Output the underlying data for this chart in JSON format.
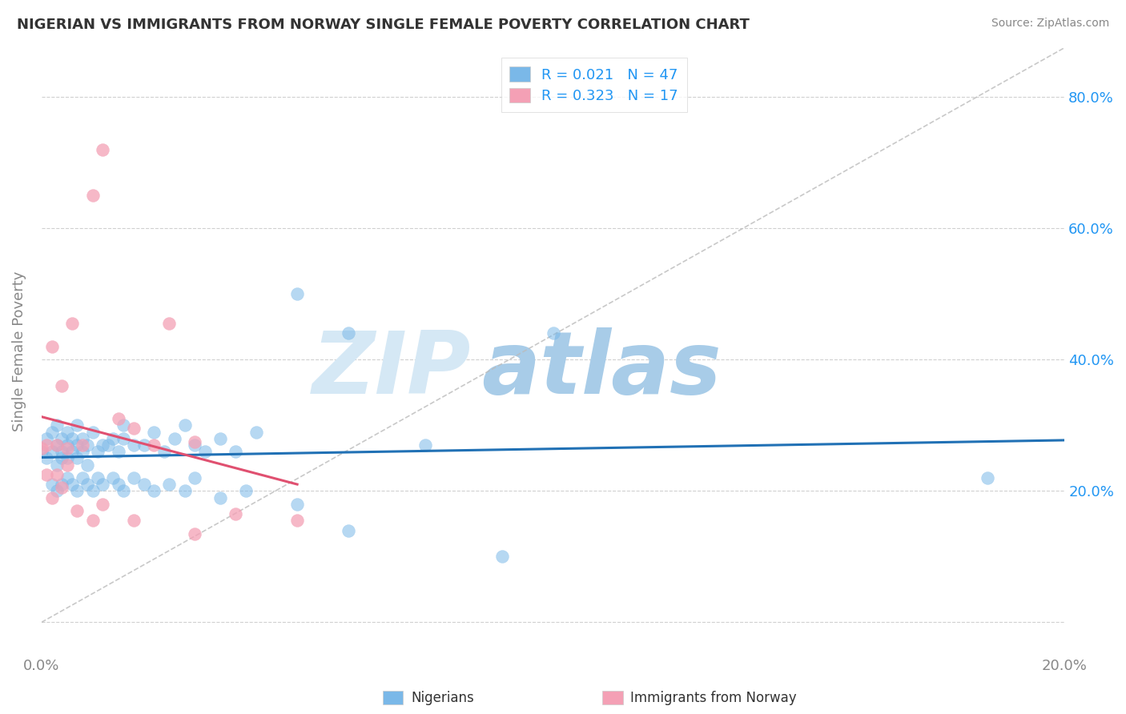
{
  "title": "NIGERIAN VS IMMIGRANTS FROM NORWAY SINGLE FEMALE POVERTY CORRELATION CHART",
  "source": "Source: ZipAtlas.com",
  "ylabel": "Single Female Poverty",
  "xlim": [
    0.0,
    0.2
  ],
  "ylim": [
    -0.05,
    0.875
  ],
  "xticks": [
    0.0,
    0.05,
    0.1,
    0.15,
    0.2
  ],
  "xticklabels": [
    "0.0%",
    "",
    "",
    "",
    "20.0%"
  ],
  "yticks_right": [
    0.0,
    0.2,
    0.4,
    0.6,
    0.8
  ],
  "yticklabels_right": [
    "",
    "20.0%",
    "40.0%",
    "60.0%",
    "80.0%"
  ],
  "blue_color": "#7ab8e8",
  "pink_color": "#f4a0b5",
  "blue_line_color": "#2171b5",
  "pink_line_color": "#e05070",
  "grid_color": "#d0d0d0",
  "watermark_zip_color": "#d5e8f5",
  "watermark_atlas_color": "#a8cce8",
  "legend_text_color": "#2196F3",
  "tick_color": "#888888",
  "ylabel_color": "#888888",
  "nigerians_x": [
    0.0,
    0.001,
    0.001,
    0.002,
    0.002,
    0.003,
    0.003,
    0.003,
    0.004,
    0.004,
    0.004,
    0.005,
    0.005,
    0.005,
    0.006,
    0.006,
    0.007,
    0.007,
    0.007,
    0.008,
    0.008,
    0.009,
    0.009,
    0.01,
    0.011,
    0.012,
    0.013,
    0.014,
    0.015,
    0.016,
    0.016,
    0.018,
    0.02,
    0.022,
    0.024,
    0.026,
    0.028,
    0.03,
    0.032,
    0.035,
    0.038,
    0.042,
    0.05,
    0.06,
    0.075,
    0.1,
    0.185
  ],
  "nigerians_y": [
    0.26,
    0.28,
    0.25,
    0.26,
    0.29,
    0.24,
    0.27,
    0.3,
    0.25,
    0.26,
    0.28,
    0.25,
    0.27,
    0.29,
    0.26,
    0.28,
    0.25,
    0.27,
    0.3,
    0.26,
    0.28,
    0.24,
    0.27,
    0.29,
    0.26,
    0.27,
    0.27,
    0.28,
    0.26,
    0.28,
    0.3,
    0.27,
    0.27,
    0.29,
    0.26,
    0.28,
    0.3,
    0.27,
    0.26,
    0.28,
    0.26,
    0.29,
    0.5,
    0.44,
    0.27,
    0.44,
    0.22
  ],
  "nigerians_below": [
    0.002,
    0.003,
    0.004,
    0.005,
    0.006,
    0.007,
    0.008,
    0.009,
    0.01,
    0.011,
    0.012,
    0.014,
    0.015,
    0.016,
    0.018,
    0.02,
    0.022,
    0.025,
    0.028,
    0.03,
    0.035,
    0.04,
    0.05,
    0.06,
    0.09
  ],
  "nigerians_below_y": [
    0.21,
    0.2,
    0.21,
    0.22,
    0.21,
    0.2,
    0.22,
    0.21,
    0.2,
    0.22,
    0.21,
    0.22,
    0.21,
    0.2,
    0.22,
    0.21,
    0.2,
    0.21,
    0.2,
    0.22,
    0.19,
    0.2,
    0.18,
    0.14,
    0.1
  ],
  "norway_x": [
    0.0,
    0.001,
    0.002,
    0.003,
    0.004,
    0.005,
    0.006,
    0.008,
    0.01,
    0.012,
    0.015,
    0.018,
    0.022,
    0.025,
    0.03,
    0.038,
    0.05
  ],
  "norway_y": [
    0.265,
    0.27,
    0.42,
    0.27,
    0.36,
    0.265,
    0.455,
    0.27,
    0.65,
    0.72,
    0.31,
    0.295,
    0.27,
    0.455,
    0.275,
    0.165,
    0.155
  ],
  "norway_below": [
    0.001,
    0.002,
    0.003,
    0.004,
    0.005,
    0.007,
    0.01,
    0.012,
    0.018,
    0.03
  ],
  "norway_below_y": [
    0.225,
    0.19,
    0.225,
    0.205,
    0.24,
    0.17,
    0.155,
    0.18,
    0.155,
    0.135
  ]
}
